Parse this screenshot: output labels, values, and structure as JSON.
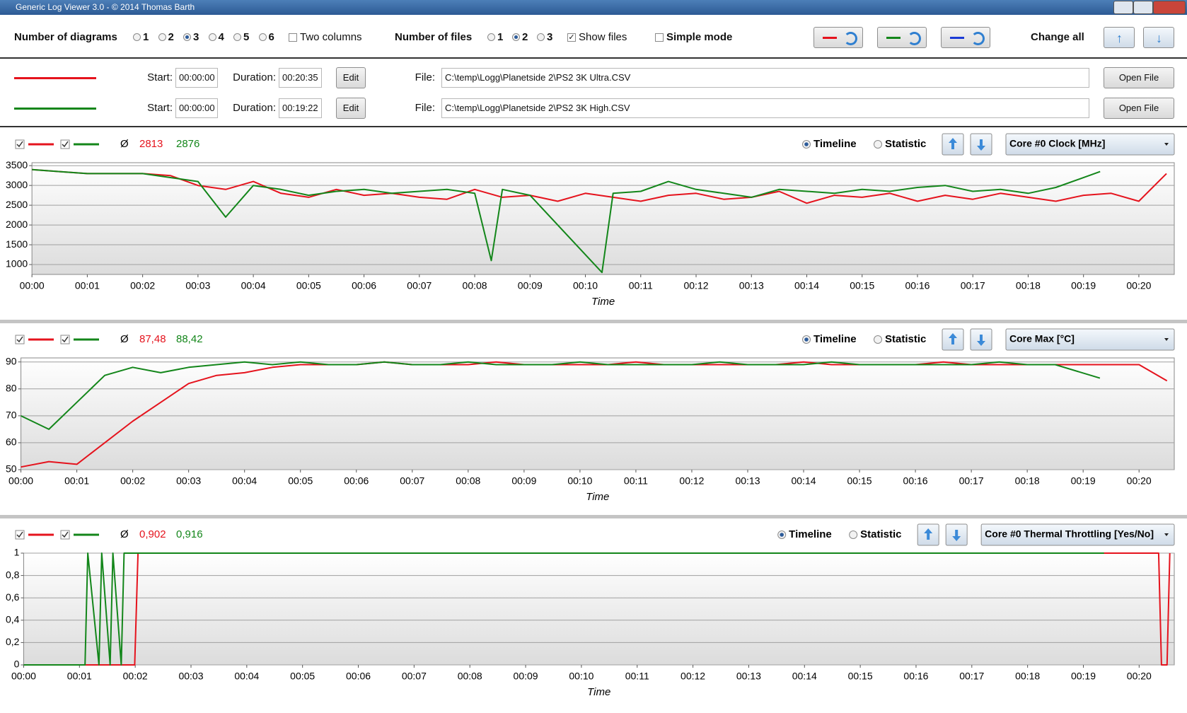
{
  "window": {
    "title": "Generic Log Viewer 3.0 - © 2014 Thomas Barth"
  },
  "toolbar": {
    "diagrams_label": "Number of diagrams",
    "diagram_options": [
      "1",
      "2",
      "3",
      "4",
      "5",
      "6"
    ],
    "diagrams_selected": 2,
    "two_columns": "Two columns",
    "two_columns_checked": false,
    "files_label": "Number of files",
    "file_options": [
      "1",
      "2",
      "3"
    ],
    "files_selected": 1,
    "show_files": "Show files",
    "show_files_checked": true,
    "simple_mode": "Simple mode",
    "simple_mode_checked": false,
    "swap_colors": [
      "#e5131d",
      "#13861a",
      "#1a3ad6"
    ],
    "change_all": "Change all"
  },
  "files": [
    {
      "color": "#e5131d",
      "start_label": "Start:",
      "start": "00:00:00",
      "duration_label": "Duration:",
      "duration": "00:20:35",
      "edit": "Edit",
      "file_label": "File:",
      "path": "C:\\temp\\Logg\\Planetside 2\\PS2 3K Ultra.CSV",
      "open": "Open File"
    },
    {
      "color": "#13861a",
      "start_label": "Start:",
      "start": "00:00:00",
      "duration_label": "Duration:",
      "duration": "00:19:22",
      "edit": "Edit",
      "file_label": "File:",
      "path": "C:\\temp\\Logg\\Planetside 2\\PS2 3K High.CSV",
      "open": "Open File"
    }
  ],
  "chart_data": [
    {
      "type": "line",
      "avg_symbol": "Ø",
      "averages": [
        "2813",
        "2876"
      ],
      "timeline": "Timeline",
      "statistic": "Statistic",
      "mode_selected": 0,
      "sensor": "Core #0 Clock [MHz]",
      "x_label": "Time",
      "grid": true,
      "xlim": [
        0,
        20.64
      ],
      "xticks": [
        {
          "value": 0,
          "label": "00:00"
        },
        {
          "value": 1,
          "label": "00:01"
        },
        {
          "value": 2,
          "label": "00:02"
        },
        {
          "value": 3,
          "label": "00:03"
        },
        {
          "value": 4,
          "label": "00:04"
        },
        {
          "value": 5,
          "label": "00:05"
        },
        {
          "value": 6,
          "label": "00:06"
        },
        {
          "value": 7,
          "label": "00:07"
        },
        {
          "value": 8,
          "label": "00:08"
        },
        {
          "value": 9,
          "label": "00:09"
        },
        {
          "value": 10,
          "label": "00:10"
        },
        {
          "value": 11,
          "label": "00:11"
        },
        {
          "value": 12,
          "label": "00:12"
        },
        {
          "value": 13,
          "label": "00:13"
        },
        {
          "value": 14,
          "label": "00:14"
        },
        {
          "value": 15,
          "label": "00:15"
        },
        {
          "value": 16,
          "label": "00:16"
        },
        {
          "value": 17,
          "label": "00:17"
        },
        {
          "value": 18,
          "label": "00:18"
        },
        {
          "value": 19,
          "label": "00:19"
        },
        {
          "value": 20,
          "label": "00:20"
        }
      ],
      "ylim": [
        750,
        3575
      ],
      "yticks": [
        1000,
        1500,
        2000,
        2500,
        3000,
        3500
      ],
      "series": [
        {
          "color": "#e5131d",
          "visible": true,
          "x": [
            0,
            0.5,
            1,
            1.5,
            2,
            2.5,
            3,
            3.5,
            4,
            4.5,
            5,
            5.5,
            6,
            6.5,
            7,
            7.5,
            8,
            8.5,
            9,
            9.5,
            10,
            10.5,
            11,
            11.5,
            12,
            12.5,
            13,
            13.5,
            14,
            14.5,
            15,
            15.5,
            16,
            16.5,
            17,
            17.5,
            18,
            18.5,
            19,
            19.5,
            20,
            20.5
          ],
          "values": [
            3400,
            3350,
            3300,
            3300,
            3300,
            3250,
            3000,
            2900,
            3100,
            2800,
            2700,
            2900,
            2750,
            2800,
            2700,
            2650,
            2900,
            2700,
            2750,
            2600,
            2800,
            2700,
            2600,
            2750,
            2800,
            2650,
            2700,
            2850,
            2550,
            2750,
            2700,
            2800,
            2600,
            2750,
            2650,
            2800,
            2700,
            2600,
            2750,
            2800,
            2600,
            3300
          ]
        },
        {
          "color": "#13861a",
          "visible": true,
          "x": [
            0,
            0.5,
            1,
            1.5,
            2,
            2.5,
            3,
            3.5,
            4,
            4.5,
            5,
            5.5,
            6,
            6.5,
            7,
            7.5,
            8,
            8.3,
            8.5,
            9,
            10.3,
            10.5,
            11,
            11.5,
            12,
            12.5,
            13,
            13.5,
            14,
            14.5,
            15,
            15.5,
            16,
            16.5,
            17,
            17.5,
            18,
            18.5,
            19.3
          ],
          "values": [
            3400,
            3350,
            3300,
            3300,
            3300,
            3200,
            3100,
            2200,
            3000,
            2900,
            2750,
            2850,
            2900,
            2800,
            2850,
            2900,
            2800,
            1100,
            2900,
            2750,
            800,
            2800,
            2850,
            3100,
            2900,
            2800,
            2700,
            2900,
            2850,
            2800,
            2900,
            2850,
            2950,
            3000,
            2850,
            2900,
            2800,
            2950,
            3350
          ]
        }
      ]
    },
    {
      "type": "line",
      "avg_symbol": "Ø",
      "averages": [
        "87,48",
        "88,42"
      ],
      "timeline": "Timeline",
      "statistic": "Statistic",
      "mode_selected": 0,
      "sensor": "Core Max [°C]",
      "x_label": "Time",
      "grid": true,
      "xlim": [
        0,
        20.63
      ],
      "xticks": [
        {
          "value": 0,
          "label": "00:00"
        },
        {
          "value": 1,
          "label": "00:01"
        },
        {
          "value": 2,
          "label": "00:02"
        },
        {
          "value": 3,
          "label": "00:03"
        },
        {
          "value": 4,
          "label": "00:04"
        },
        {
          "value": 5,
          "label": "00:05"
        },
        {
          "value": 6,
          "label": "00:06"
        },
        {
          "value": 7,
          "label": "00:07"
        },
        {
          "value": 8,
          "label": "00:08"
        },
        {
          "value": 9,
          "label": "00:09"
        },
        {
          "value": 10,
          "label": "00:10"
        },
        {
          "value": 11,
          "label": "00:11"
        },
        {
          "value": 12,
          "label": "00:12"
        },
        {
          "value": 13,
          "label": "00:13"
        },
        {
          "value": 14,
          "label": "00:14"
        },
        {
          "value": 15,
          "label": "00:15"
        },
        {
          "value": 16,
          "label": "00:16"
        },
        {
          "value": 17,
          "label": "00:17"
        },
        {
          "value": 18,
          "label": "00:18"
        },
        {
          "value": 19,
          "label": "00:19"
        },
        {
          "value": 20,
          "label": "00:20"
        }
      ],
      "ylim": [
        50,
        91.5
      ],
      "yticks": [
        50,
        60,
        70,
        80,
        90
      ],
      "series": [
        {
          "color": "#e5131d",
          "visible": true,
          "x": [
            0,
            0.5,
            1,
            1.5,
            2,
            2.5,
            3,
            3.5,
            4,
            4.5,
            5,
            5.5,
            6,
            6.5,
            7,
            7.5,
            8,
            8.5,
            9,
            9.5,
            10,
            10.5,
            11,
            11.5,
            12,
            12.5,
            13,
            13.5,
            14,
            14.5,
            15,
            15.5,
            16,
            16.5,
            17,
            17.5,
            18,
            18.5,
            19,
            19.5,
            20,
            20.5
          ],
          "values": [
            51,
            53,
            52,
            60,
            68,
            75,
            82,
            85,
            86,
            88,
            89,
            89,
            89,
            90,
            89,
            89,
            89,
            90,
            89,
            89,
            89,
            89,
            90,
            89,
            89,
            89,
            89,
            89,
            90,
            89,
            89,
            89,
            89,
            90,
            89,
            89,
            89,
            89,
            89,
            89,
            89,
            83
          ]
        },
        {
          "color": "#13861a",
          "visible": true,
          "x": [
            0,
            0.5,
            1,
            1.5,
            2,
            2.5,
            3,
            3.5,
            4,
            4.5,
            5,
            5.5,
            6,
            6.5,
            7,
            7.5,
            8,
            8.5,
            9,
            9.5,
            10,
            10.5,
            11,
            11.5,
            12,
            12.5,
            13,
            13.5,
            14,
            14.5,
            15,
            15.5,
            16,
            16.5,
            17,
            17.5,
            18,
            18.5,
            19.3
          ],
          "values": [
            70,
            65,
            75,
            85,
            88,
            86,
            88,
            89,
            90,
            89,
            90,
            89,
            89,
            90,
            89,
            89,
            90,
            89,
            89,
            89,
            90,
            89,
            89,
            89,
            89,
            90,
            89,
            89,
            89,
            90,
            89,
            89,
            89,
            89,
            89,
            90,
            89,
            89,
            84
          ]
        }
      ]
    },
    {
      "type": "line",
      "avg_symbol": "Ø",
      "averages": [
        "0,902",
        "0,916"
      ],
      "timeline": "Timeline",
      "statistic": "Statistic",
      "mode_selected": 0,
      "sensor": "Core #0 Thermal Throttling [Yes/No]",
      "x_label": "Time",
      "grid": true,
      "xlim": [
        0,
        20.63
      ],
      "xticks": [
        {
          "value": 0,
          "label": "00:00"
        },
        {
          "value": 1,
          "label": "00:01"
        },
        {
          "value": 2,
          "label": "00:02"
        },
        {
          "value": 3,
          "label": "00:03"
        },
        {
          "value": 4,
          "label": "00:04"
        },
        {
          "value": 5,
          "label": "00:05"
        },
        {
          "value": 6,
          "label": "00:06"
        },
        {
          "value": 7,
          "label": "00:07"
        },
        {
          "value": 8,
          "label": "00:08"
        },
        {
          "value": 9,
          "label": "00:09"
        },
        {
          "value": 10,
          "label": "00:10"
        },
        {
          "value": 11,
          "label": "00:11"
        },
        {
          "value": 12,
          "label": "00:12"
        },
        {
          "value": 13,
          "label": "00:13"
        },
        {
          "value": 14,
          "label": "00:14"
        },
        {
          "value": 15,
          "label": "00:15"
        },
        {
          "value": 16,
          "label": "00:16"
        },
        {
          "value": 17,
          "label": "00:17"
        },
        {
          "value": 18,
          "label": "00:18"
        },
        {
          "value": 19,
          "label": "00:19"
        },
        {
          "value": 20,
          "label": "00:20"
        }
      ],
      "ylim": [
        0,
        1
      ],
      "yticks": [
        0,
        {
          "value": 0.2,
          "label": "0,2"
        },
        {
          "value": 0.4,
          "label": "0,4"
        },
        {
          "value": 0.6,
          "label": "0,6"
        },
        {
          "value": 0.8,
          "label": "0,8"
        },
        1
      ],
      "series": [
        {
          "color": "#e5131d",
          "visible": true,
          "x": [
            0,
            1.99,
            2.05,
            20.35,
            20.4,
            20.5,
            20.55
          ],
          "values": [
            0,
            0,
            1,
            1,
            0,
            0,
            1
          ]
        },
        {
          "color": "#13861a",
          "visible": true,
          "x": [
            0,
            1.1,
            1.15,
            1.35,
            1.4,
            1.55,
            1.6,
            1.75,
            1.8,
            19.37
          ],
          "values": [
            0,
            0,
            1,
            0,
            1,
            0,
            1,
            0,
            1,
            1
          ]
        }
      ]
    }
  ]
}
